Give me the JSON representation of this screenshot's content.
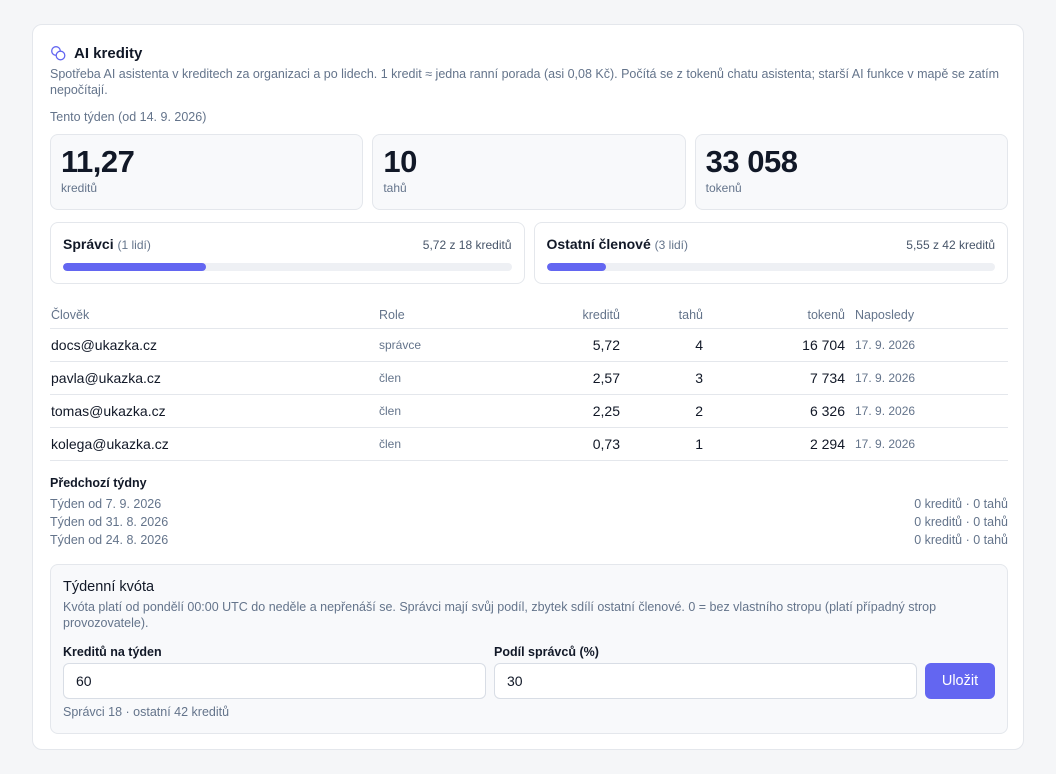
{
  "header": {
    "title": "AI kredity",
    "icon": "coins-icon",
    "description": "Spotřeba AI asistenta v kreditech za organizaci a po lidech. 1 kredit ≈ jedna ranní porada (asi 0,08 Kč). Počítá se z tokenů chatu asistenta; starší AI funkce v mapě se zatím nepočítají."
  },
  "week_label": "Tento týden (od 14. 9. 2026)",
  "stats": [
    {
      "value": "11,27",
      "label": "kreditů"
    },
    {
      "value": "10",
      "label": "tahů"
    },
    {
      "value": "33 058",
      "label": "tokenů"
    }
  ],
  "groups": [
    {
      "name": "Správci",
      "count": "(1 lidí)",
      "usage": "5,72 z 18 kreditů",
      "fill_fraction": 0.318
    },
    {
      "name": "Ostatní členové",
      "count": "(3 lidí)",
      "usage": "5,55 z 42 kreditů",
      "fill_fraction": 0.132
    }
  ],
  "table": {
    "headers": {
      "person": "Člověk",
      "role": "Role",
      "credits": "kreditů",
      "turns": "tahů",
      "tokens": "tokenů",
      "last": "Naposledy"
    },
    "rows": [
      {
        "person": "docs@ukazka.cz",
        "role": "správce",
        "credits": "5,72",
        "turns": "4",
        "tokens": "16 704",
        "last": "17. 9. 2026"
      },
      {
        "person": "pavla@ukazka.cz",
        "role": "člen",
        "credits": "2,57",
        "turns": "3",
        "tokens": "7 734",
        "last": "17. 9. 2026"
      },
      {
        "person": "tomas@ukazka.cz",
        "role": "člen",
        "credits": "2,25",
        "turns": "2",
        "tokens": "6 326",
        "last": "17. 9. 2026"
      },
      {
        "person": "kolega@ukazka.cz",
        "role": "člen",
        "credits": "0,73",
        "turns": "1",
        "tokens": "2 294",
        "last": "17. 9. 2026"
      }
    ]
  },
  "previous": {
    "title": "Předchozí týdny",
    "weeks": [
      {
        "label": "Týden od 7. 9. 2026",
        "summary": "0 kreditů · 0 tahů"
      },
      {
        "label": "Týden od 31. 8. 2026",
        "summary": "0 kreditů · 0 tahů"
      },
      {
        "label": "Týden od 24. 8. 2026",
        "summary": "0 kreditů · 0 tahů"
      }
    ]
  },
  "quota": {
    "title": "Týdenní kvóta",
    "description": "Kvóta platí od pondělí 00:00 UTC do neděle a nepřenáší se. Správci mají svůj podíl, zbytek sdílí ostatní členové. 0 = bez vlastního stropu (platí případný strop provozovatele).",
    "credits_label": "Kreditů na týden",
    "credits_value": "60",
    "share_label": "Podíl správců (%)",
    "share_value": "30",
    "save_label": "Uložit",
    "split_text": "Správci 18 · ostatní 42 kreditů"
  },
  "accent_color": "#6366f1"
}
